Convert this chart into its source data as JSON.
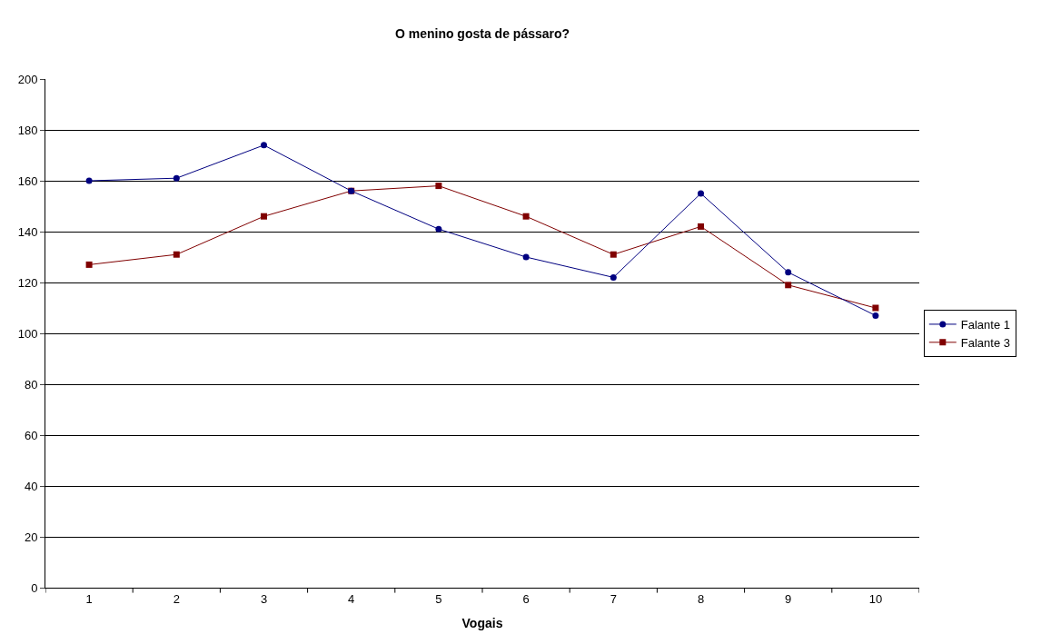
{
  "chart_data": {
    "type": "line",
    "title": "O menino gosta de pássaro?",
    "xlabel": "Vogais",
    "categories": [
      "1",
      "2",
      "3",
      "4",
      "5",
      "6",
      "7",
      "8",
      "9",
      "10"
    ],
    "series": [
      {
        "name": "Falante 1",
        "color": "#000080",
        "marker": "circle",
        "values": [
          160,
          161,
          174,
          156,
          141,
          130,
          122,
          155,
          124,
          107
        ]
      },
      {
        "name": "Falante 3",
        "color": "#800000",
        "marker": "square",
        "values": [
          127,
          131,
          146,
          156,
          158,
          146,
          131,
          142,
          119,
          110
        ]
      }
    ],
    "ylim": [
      0,
      200
    ],
    "yticks": [
      0,
      20,
      40,
      60,
      80,
      100,
      120,
      140,
      160,
      180,
      200
    ],
    "grid": "y",
    "legend": "right",
    "line_style": "solid"
  }
}
